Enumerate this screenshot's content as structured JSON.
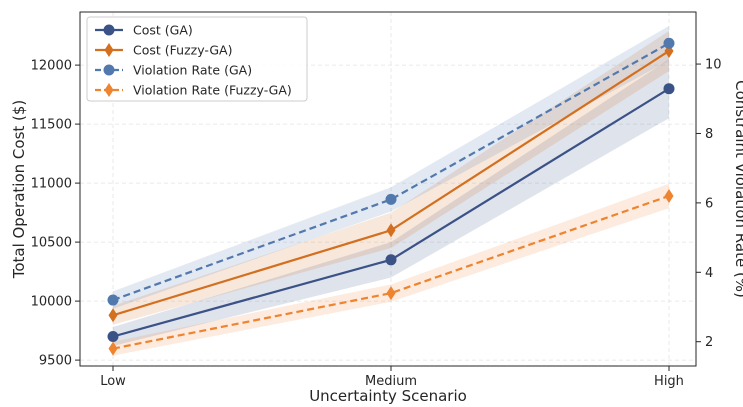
{
  "chart_data": {
    "type": "line",
    "categories": [
      "Low",
      "Medium",
      "High"
    ],
    "xlabel": "Uncertainty Scenario",
    "ylabel_left": "Total Operation Cost ($)",
    "ylabel_right": "Constraint Violation Rate (%)",
    "ylim_left": [
      9450,
      12450
    ],
    "ylim_right": [
      1.3,
      11.5
    ],
    "yticks_left": [
      9500,
      10000,
      10500,
      11000,
      11500,
      12000
    ],
    "yticks_right": [
      2,
      4,
      6,
      8,
      10
    ],
    "grid": true,
    "legend_position": "top-left",
    "series": [
      {
        "name": "Cost (GA)",
        "axis": "left",
        "values": [
          9700,
          10350,
          11800
        ],
        "band": [
          [
            9620,
            9780
          ],
          [
            10200,
            10500
          ],
          [
            11550,
            12050
          ]
        ],
        "color": "#3b5287",
        "dash": false,
        "marker": "circle"
      },
      {
        "name": "Cost (Fuzzy-GA)",
        "axis": "left",
        "values": [
          9880,
          10600,
          12120
        ],
        "band": [
          [
            9800,
            9960
          ],
          [
            10450,
            10750
          ],
          [
            11950,
            12290
          ]
        ],
        "color": "#d36f1e",
        "dash": false,
        "marker": "diamond"
      },
      {
        "name": "Violation Rate (GA)",
        "axis": "right",
        "values": [
          3.2,
          6.1,
          10.6
        ],
        "band": [
          [
            2.95,
            3.45
          ],
          [
            5.75,
            6.45
          ],
          [
            10.1,
            11.1
          ]
        ],
        "color": "#5279ad",
        "dash": true,
        "marker": "circle"
      },
      {
        "name": "Violation Rate (Fuzzy-GA)",
        "axis": "right",
        "values": [
          1.8,
          3.4,
          6.2
        ],
        "band": [
          [
            1.6,
            2.0
          ],
          [
            3.15,
            3.65
          ],
          [
            5.85,
            6.55
          ]
        ],
        "color": "#ee8330",
        "dash": true,
        "marker": "diamond"
      }
    ]
  }
}
